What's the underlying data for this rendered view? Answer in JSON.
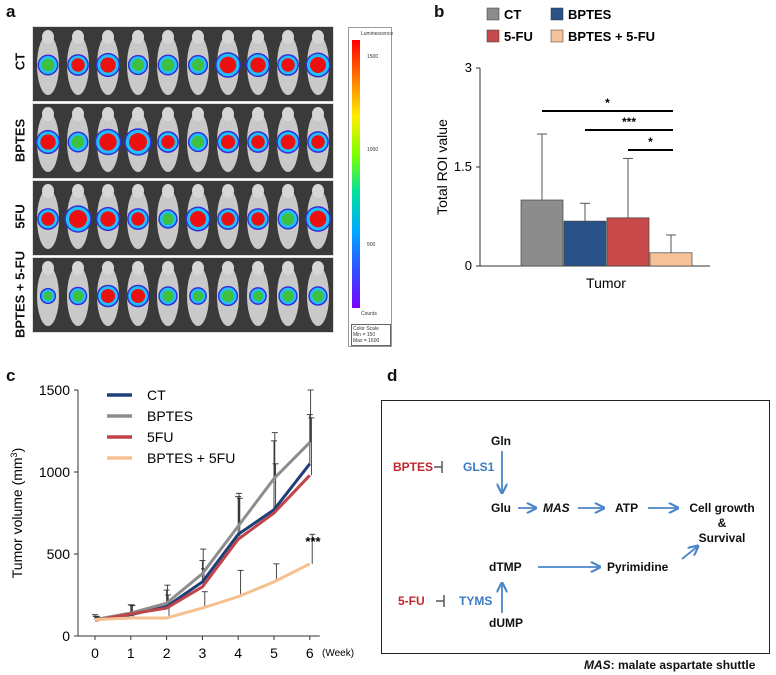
{
  "panels": {
    "a": "a",
    "b": "b",
    "c": "c",
    "d": "d"
  },
  "panel_a": {
    "row_labels": [
      "CT",
      "BPTES",
      "5FU",
      "BPTES + 5-FU"
    ],
    "colorbar": {
      "title": "Luminescence",
      "ticks": [
        "1500",
        "1000",
        "500"
      ],
      "unit": "Counts",
      "scale_title": "Color Scale",
      "scale_min": "Min = 150",
      "scale_max": "Max = 1600"
    },
    "mouse_signal_size": [
      [
        0.5,
        0.55,
        0.7,
        0.45,
        0.5,
        0.45,
        0.8,
        0.7,
        0.55,
        0.75
      ],
      [
        0.7,
        0.5,
        0.85,
        0.9,
        0.55,
        0.45,
        0.6,
        0.55,
        0.65,
        0.55
      ],
      [
        0.55,
        0.9,
        0.7,
        0.55,
        0.4,
        0.75,
        0.55,
        0.55,
        0.5,
        0.8
      ],
      [
        0.2,
        0.35,
        0.6,
        0.6,
        0.4,
        0.3,
        0.45,
        0.3,
        0.4,
        0.4
      ]
    ]
  },
  "chart_data": [
    {
      "type": "bar",
      "title": "",
      "legend": [
        "CT",
        "5-FU",
        "BPTES",
        "BPTES + 5-FU"
      ],
      "categories": [
        "Tumor"
      ],
      "series": [
        {
          "name": "CT",
          "values": [
            1.0
          ],
          "error": [
            1.0
          ],
          "color": "#8c8c8c"
        },
        {
          "name": "BPTES",
          "values": [
            0.68
          ],
          "error": [
            0.27
          ],
          "color": "#2a5288"
        },
        {
          "name": "5-FU",
          "values": [
            0.73
          ],
          "error": [
            0.9
          ],
          "color": "#c94a4b"
        },
        {
          "name": "BPTES + 5-FU",
          "values": [
            0.2
          ],
          "error": [
            0.27
          ],
          "color": "#f6c299"
        }
      ],
      "xlabel": "Tumor",
      "ylabel": "Total ROI value",
      "ylim": [
        0,
        3
      ],
      "yticks": [
        "0",
        "1.5",
        "3"
      ],
      "significance": [
        "*",
        "***",
        "*"
      ]
    },
    {
      "type": "line",
      "x": [
        0,
        1,
        2,
        3,
        4,
        5,
        6
      ],
      "xticks": [
        "0",
        "1",
        "2",
        "3",
        "4",
        "5",
        "6"
      ],
      "xunit": "(Week)",
      "ylabel": "Tumor volume (mm",
      "ylabel_sup": "3",
      "ylabel_close": ")",
      "ylim": [
        0,
        1500
      ],
      "yticks": [
        "0",
        "500",
        "1000",
        "1500"
      ],
      "series": [
        {
          "name": "CT",
          "values": [
            100,
            130,
            180,
            330,
            620,
            770,
            1050
          ],
          "error": [
            30,
            60,
            100,
            130,
            230,
            420,
            300
          ],
          "color": "#1f3f78"
        },
        {
          "name": "BPTES",
          "values": [
            100,
            140,
            200,
            380,
            670,
            960,
            1180
          ],
          "error": [
            20,
            50,
            110,
            150,
            200,
            280,
            320
          ],
          "color": "#8d8d8d"
        },
        {
          "name": "5FU",
          "values": [
            95,
            135,
            170,
            300,
            590,
            750,
            980
          ],
          "error": [
            25,
            50,
            80,
            110,
            250,
            300,
            350
          ],
          "color": "#c0444b"
        },
        {
          "name": "BPTES + 5FU",
          "values": [
            100,
            110,
            110,
            170,
            240,
            330,
            440
          ],
          "error": [
            15,
            40,
            70,
            100,
            160,
            110,
            180
          ],
          "color": "#f6c08f"
        }
      ],
      "annotation": "***"
    }
  ],
  "panel_d": {
    "nodes": {
      "gln": "Gln",
      "glu": "Glu",
      "mas": "MAS",
      "atp": "ATP",
      "cell1": "Cell growth",
      "cell2": "&",
      "cell3": "Survival",
      "dtmp": "dTMP",
      "dump": "dUMP",
      "pyrimidine": "Pyrimidine",
      "bptes": "BPTES",
      "gls1": "GLS1",
      "fu": "5-FU",
      "tyms": "TYMS"
    },
    "footnote_term": "MAS",
    "footnote_text": ": malate aspartate shuttle"
  },
  "colors": {
    "arrow": "#4a86c8",
    "inhibitor_red": "#c0282d",
    "enzyme_blue": "#3a7cc2"
  }
}
